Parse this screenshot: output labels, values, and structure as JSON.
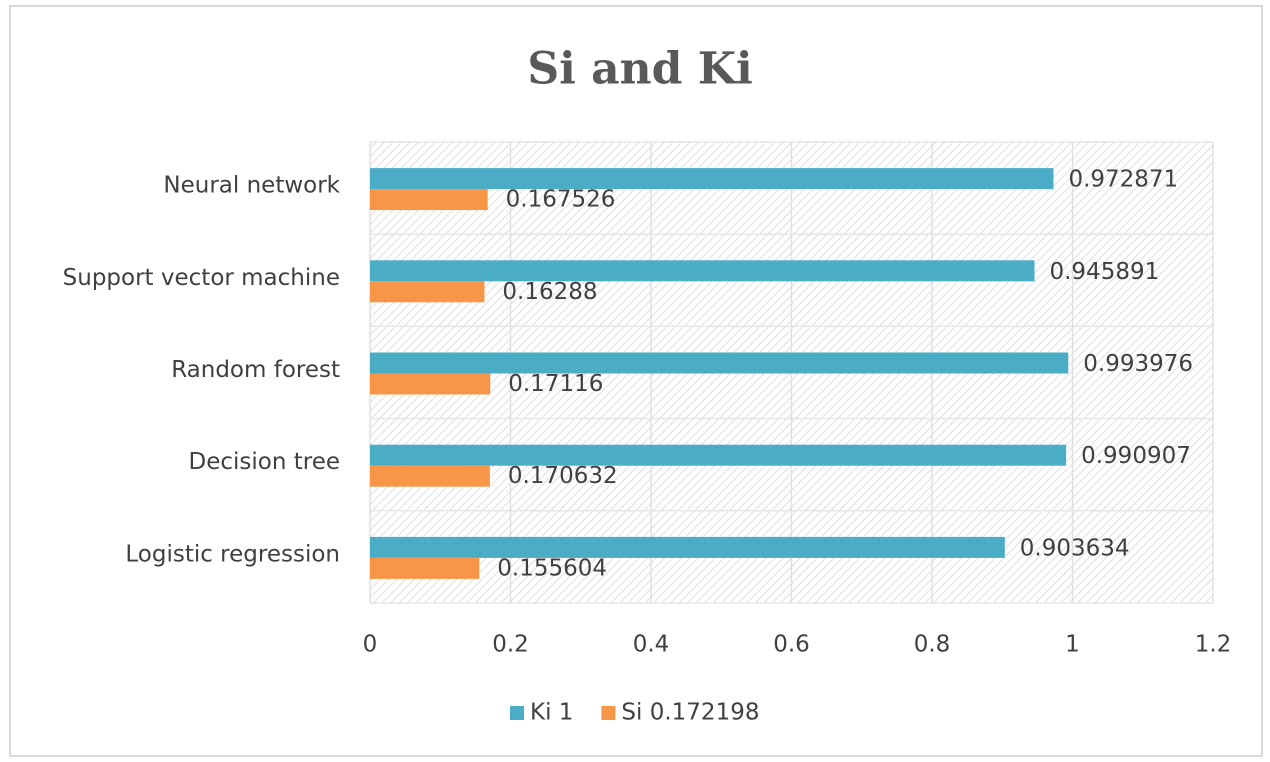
{
  "chart_data": {
    "type": "hbar",
    "title": "Si and Ki",
    "categories": [
      "Logistic regression",
      "Decision tree",
      "Random forest",
      "Support vector machine",
      "Neural network"
    ],
    "series": [
      {
        "name": "Ki 1",
        "color": "#4bacc6",
        "values": [
          0.903634,
          0.990907,
          0.993976,
          0.945891,
          0.972871
        ]
      },
      {
        "name": "Si 0.172198",
        "color": "#f79646",
        "values": [
          0.155604,
          0.170632,
          0.17116,
          0.16288,
          0.167526
        ]
      }
    ],
    "xlim": [
      0,
      1.2
    ],
    "xticks": [
      0,
      0.2,
      0.4,
      0.6,
      0.8,
      1,
      1.2
    ],
    "grid": true,
    "legend": "bottom"
  }
}
